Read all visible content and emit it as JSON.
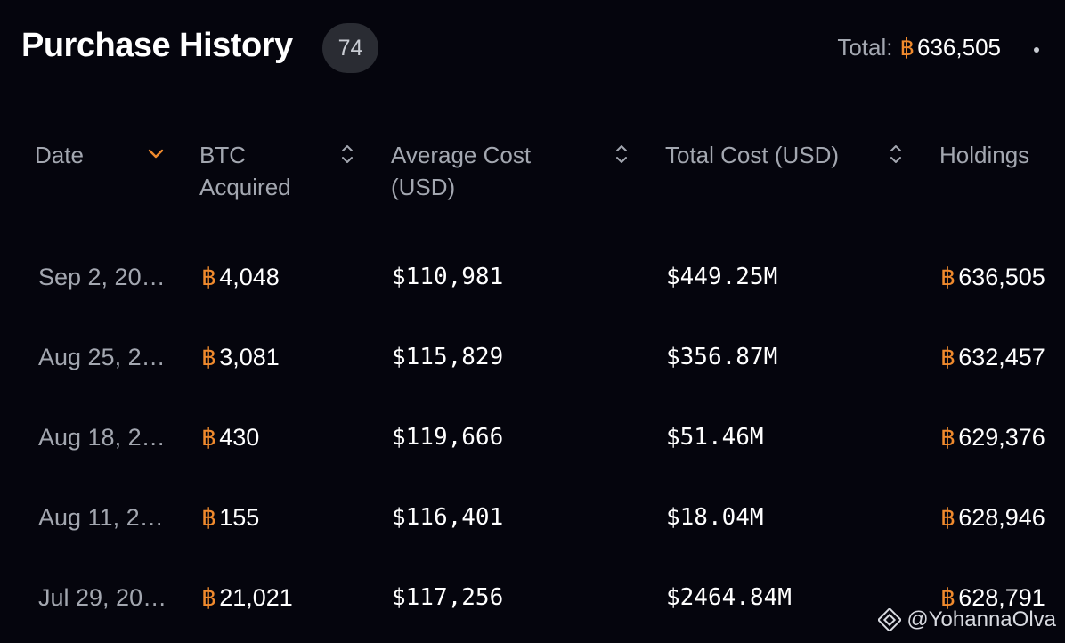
{
  "header": {
    "title": "Purchase History",
    "count": "74",
    "total_label": "Total:",
    "total_symbol": "฿",
    "total_value": "636,505"
  },
  "columns": [
    {
      "label_line1": "Date",
      "label_line2": "",
      "sort": "desc-active"
    },
    {
      "label_line1": "BTC",
      "label_line2": "Acquired",
      "sort": "unsorted"
    },
    {
      "label_line1": "Average Cost",
      "label_line2": "(USD)",
      "sort": "unsorted"
    },
    {
      "label_line1": "Total Cost (USD)",
      "label_line2": "",
      "sort": "unsorted"
    },
    {
      "label_line1": "Holdings",
      "label_line2": "",
      "sort": "none"
    }
  ],
  "rows": [
    {
      "date": "Sep 2, 20…",
      "btc_symbol": "฿",
      "btc_acquired": "4,048",
      "avg_cost": "$110,981",
      "total_cost": "$449.25M",
      "holdings_symbol": "฿",
      "holdings": "636,505"
    },
    {
      "date": "Aug 25, 2…",
      "btc_symbol": "฿",
      "btc_acquired": "3,081",
      "avg_cost": "$115,829",
      "total_cost": "$356.87M",
      "holdings_symbol": "฿",
      "holdings": "632,457"
    },
    {
      "date": "Aug 18, 2…",
      "btc_symbol": "฿",
      "btc_acquired": "430",
      "avg_cost": "$119,666",
      "total_cost": "$51.46M",
      "holdings_symbol": "฿",
      "holdings": "629,376"
    },
    {
      "date": "Aug 11, 2…",
      "btc_symbol": "฿",
      "btc_acquired": "155",
      "avg_cost": "$116,401",
      "total_cost": "$18.04M",
      "holdings_symbol": "฿",
      "holdings": "628,946"
    },
    {
      "date": "Jul 29, 20…",
      "btc_symbol": "฿",
      "btc_acquired": "21,021",
      "avg_cost": "$117,256",
      "total_cost": "$2464.84M",
      "holdings_symbol": "฿",
      "holdings": "628,791"
    }
  ],
  "watermark": "@YohannaOlva",
  "colors": {
    "background": "#05050d",
    "accent_orange": "#f08a2d",
    "muted_text": "#a3a7b0",
    "badge_bg": "#2a2c33"
  },
  "icons": {
    "sort_active": "chevron-down-icon",
    "sort_inactive": "sort-updown-icon",
    "menu": "dot-menu-icon",
    "watermark_logo": "binance-logo-icon"
  }
}
